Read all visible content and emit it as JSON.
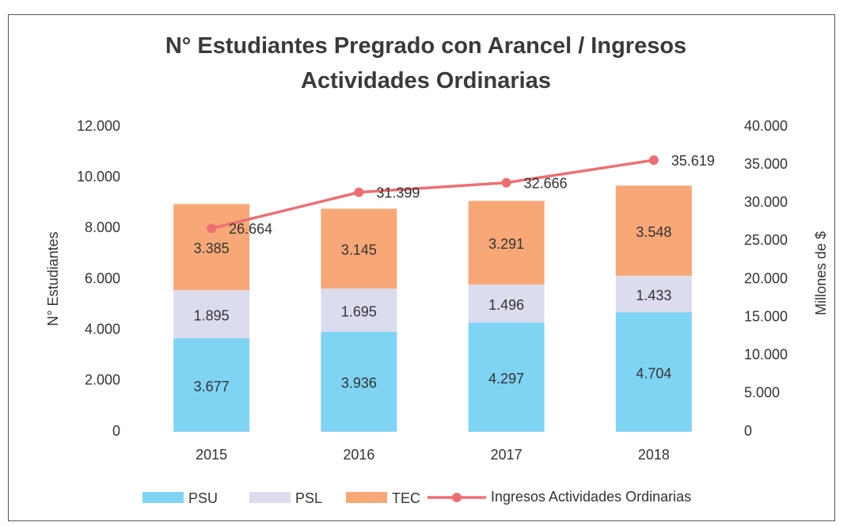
{
  "chart_data": {
    "type": "bar",
    "title": "N° Estudiantes Pregrado con Arancel / Ingresos Actividades Ordinarias",
    "categories": [
      "2015",
      "2016",
      "2017",
      "2018"
    ],
    "ylabel": "N° Estudiantes",
    "y2label": "Millones de $",
    "ylim": [
      0,
      12000
    ],
    "yticks": [
      0,
      {
        "value": 2000,
        "label": "2.000"
      },
      {
        "value": 4000,
        "label": "4.000"
      },
      {
        "value": 6000,
        "label": "6.000"
      },
      {
        "value": 8000,
        "label": "8.000"
      },
      {
        "value": 10000,
        "label": "10.000"
      },
      {
        "value": 12000,
        "label": "12.000"
      }
    ],
    "y2lim": [
      0,
      40000
    ],
    "y2ticks": [
      0,
      {
        "value": 5000,
        "label": "5.000"
      },
      {
        "value": 10000,
        "label": "10.000"
      },
      {
        "value": 15000,
        "label": "15.000"
      },
      {
        "value": 20000,
        "label": "20.000"
      },
      {
        "value": 25000,
        "label": "25.000"
      },
      {
        "value": 30000,
        "label": "30.000"
      },
      {
        "value": 35000,
        "label": "35.000"
      },
      {
        "value": 40000,
        "label": "40.000"
      }
    ],
    "stacked": true,
    "legend": "bottom",
    "series": [
      {
        "name": "PSU",
        "color": "#7fd3f3",
        "values": [
          3677,
          3936,
          4297,
          4704
        ],
        "value_labels": [
          "3.677",
          "3.936",
          "4.297",
          "4.704"
        ]
      },
      {
        "name": "PSL",
        "color": "#dcdcef",
        "values": [
          1895,
          1695,
          1496,
          1433
        ],
        "value_labels": [
          "1.895",
          "1.695",
          "1.496",
          "1.433"
        ]
      },
      {
        "name": "TEC",
        "color": "#f8a877",
        "values": [
          3385,
          3145,
          3291,
          3548
        ],
        "value_labels": [
          "3.385",
          "3.145",
          "3.291",
          "3.548"
        ]
      },
      {
        "name": "Ingresos Actividades Ordinarias",
        "type": "line",
        "axis": "y2",
        "color": "#ec6f74",
        "values": [
          26664,
          31399,
          32666,
          35619
        ],
        "value_labels": [
          "26.664",
          "31.399",
          "32.666",
          "35.619"
        ]
      }
    ]
  }
}
